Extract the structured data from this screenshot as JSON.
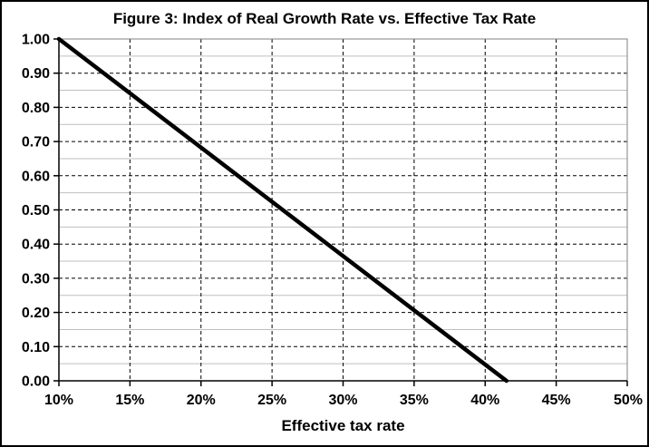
{
  "chart_data": {
    "type": "line",
    "title": "Figure 3: Index of Real Growth Rate vs. Effective Tax Rate",
    "xlabel": "Effective tax rate",
    "ylabel": "",
    "xlim": [
      10,
      50
    ],
    "ylim": [
      0.0,
      1.0
    ],
    "x_tick_labels": [
      "10%",
      "15%",
      "20%",
      "25%",
      "30%",
      "35%",
      "40%",
      "45%",
      "50%"
    ],
    "x_tick_values": [
      10,
      15,
      20,
      25,
      30,
      35,
      40,
      45,
      50
    ],
    "y_tick_labels": [
      "0.00",
      "0.10",
      "0.20",
      "0.30",
      "0.40",
      "0.50",
      "0.60",
      "0.70",
      "0.80",
      "0.90",
      "1.00"
    ],
    "y_tick_values": [
      0,
      0.1,
      0.2,
      0.3,
      0.4,
      0.5,
      0.6,
      0.7,
      0.8,
      0.9,
      1.0
    ],
    "y_minor_tick_values": [
      0.05,
      0.15,
      0.25,
      0.35,
      0.45,
      0.55,
      0.65,
      0.75,
      0.85,
      0.95
    ],
    "grid": {
      "h_major": "black dashed every 0.10",
      "h_minor": "solid light gray every 0.05",
      "v_major": "black dashed every 5%"
    },
    "legend": "none",
    "series": [
      {
        "name": "Index of real growth rate",
        "x": [
          10,
          41.5
        ],
        "y": [
          1.0,
          0.0
        ],
        "color": "#000000",
        "width": 4.5
      }
    ],
    "sampled_points": {
      "x": [
        10,
        15,
        20,
        25,
        30,
        35,
        40,
        41.5
      ],
      "y": [
        1.0,
        0.84,
        0.68,
        0.52,
        0.37,
        0.21,
        0.05,
        0.0
      ]
    },
    "x_intercept_pct": 41.5,
    "colors": {
      "line": "#000000",
      "minor_grid": "#bfbfbf",
      "plot_border": "#808080",
      "axis": "#000000",
      "text": "#000000",
      "background": "#ffffff"
    }
  }
}
